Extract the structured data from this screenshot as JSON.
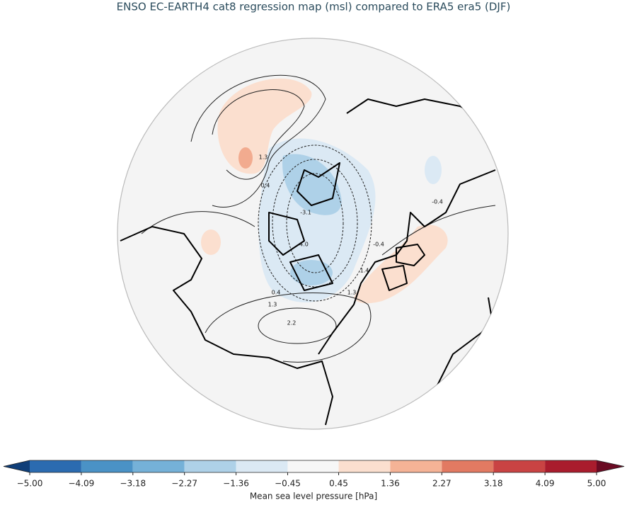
{
  "title": "ENSO EC-EARTH4 cat8 regression map (msl) compared to ERA5 era5 (DJF)",
  "map": {
    "contour_labels": [
      "1.3",
      "0.4",
      "-3.1",
      "-4.0",
      "-0.4",
      "-0.4",
      "0.4",
      "1.3",
      "2.2",
      "1.3",
      "1.4"
    ]
  },
  "chart_data": {
    "type": "colorbar",
    "label": "Mean sea level pressure [hPa]",
    "xlim": [
      -5,
      5
    ],
    "xticks": [
      {
        "value": -5,
        "label": "−5.00"
      },
      {
        "value": -4.09,
        "label": "−4.09"
      },
      {
        "value": -3.18,
        "label": "−3.18"
      },
      {
        "value": -2.27,
        "label": "−2.27"
      },
      {
        "value": -1.36,
        "label": "−1.36"
      },
      {
        "value": -0.45,
        "label": "−0.45"
      },
      0.45,
      1.36,
      2.27,
      3.18,
      4.09,
      {
        "value": 5,
        "label": "5.00"
      }
    ],
    "colors": [
      "#2b6bb0",
      "#4a92c6",
      "#75b1d8",
      "#aed1e8",
      "#dbe9f4",
      "#f7f7f7",
      "#fbdfcf",
      "#f5b396",
      "#e27a62",
      "#c94343",
      "#a91c2d"
    ],
    "extend_colors": [
      "#0f3e78",
      "#6a0b23"
    ]
  }
}
